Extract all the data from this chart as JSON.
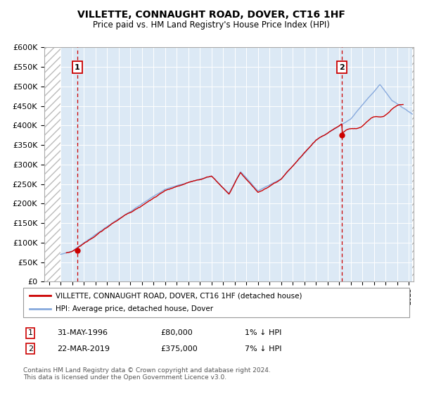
{
  "title": "VILLETTE, CONNAUGHT ROAD, DOVER, CT16 1HF",
  "subtitle": "Price paid vs. HM Land Registry's House Price Index (HPI)",
  "ylim": [
    0,
    600000
  ],
  "yticks": [
    0,
    50000,
    100000,
    150000,
    200000,
    250000,
    300000,
    350000,
    400000,
    450000,
    500000,
    550000,
    600000
  ],
  "ytick_labels": [
    "£0",
    "£50K",
    "£100K",
    "£150K",
    "£200K",
    "£250K",
    "£300K",
    "£350K",
    "£400K",
    "£450K",
    "£500K",
    "£550K",
    "£600K"
  ],
  "xlim_start": 1993.6,
  "xlim_end": 2025.4,
  "plot_bg_color": "#dce9f5",
  "grid_color": "#ffffff",
  "red_line_color": "#cc0000",
  "blue_line_color": "#88aadd",
  "marker1_x": 1996.42,
  "marker1_y": 80000,
  "marker2_x": 2019.22,
  "marker2_y": 375000,
  "legend_label_red": "VILLETTE, CONNAUGHT ROAD, DOVER, CT16 1HF (detached house)",
  "legend_label_blue": "HPI: Average price, detached house, Dover",
  "table_row1": [
    "1",
    "31-MAY-1996",
    "£80,000",
    "1% ↓ HPI"
  ],
  "table_row2": [
    "2",
    "22-MAR-2019",
    "£375,000",
    "7% ↓ HPI"
  ],
  "footnote": "Contains HM Land Registry data © Crown copyright and database right 2024.\nThis data is licensed under the Open Government Licence v3.0.",
  "hpi_data_start": 1995.0,
  "hpi_data_end": 2025.3,
  "red_data_start": 1995.5,
  "red_data_end": 2024.5
}
